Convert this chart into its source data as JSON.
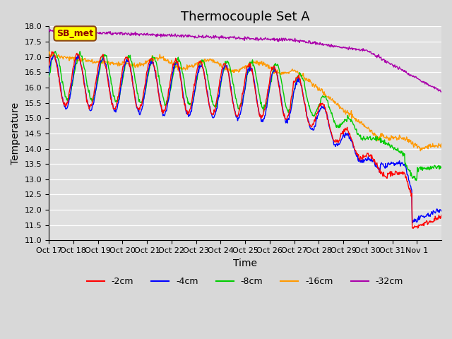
{
  "title": "Thermocouple Set A",
  "xlabel": "Time",
  "ylabel": "Temperature",
  "ylim": [
    11.0,
    18.0
  ],
  "yticks": [
    11.0,
    11.5,
    12.0,
    12.5,
    13.0,
    13.5,
    14.0,
    14.5,
    15.0,
    15.5,
    16.0,
    16.5,
    17.0,
    17.5,
    18.0
  ],
  "xtick_labels": [
    "Oct 17",
    "Oct 18",
    "Oct 19",
    "Oct 20",
    "Oct 21",
    "Oct 22",
    "Oct 23",
    "Oct 24",
    "Oct 25",
    "Oct 26",
    "Oct 27",
    "Oct 28",
    "Oct 29",
    "Oct 30",
    "Oct 31",
    "Nov 1"
  ],
  "colors": {
    "-2cm": "#ff0000",
    "-4cm": "#0000ff",
    "-8cm": "#00cc00",
    "-16cm": "#ff9900",
    "-32cm": "#aa00aa"
  },
  "legend_label": "SB_met",
  "legend_box_color": "#ffff00",
  "legend_box_edge": "#8b4513",
  "background_color": "#e0e0e0",
  "grid_color": "#ffffff",
  "title_fontsize": 13,
  "label_fontsize": 10,
  "tick_fontsize": 8
}
